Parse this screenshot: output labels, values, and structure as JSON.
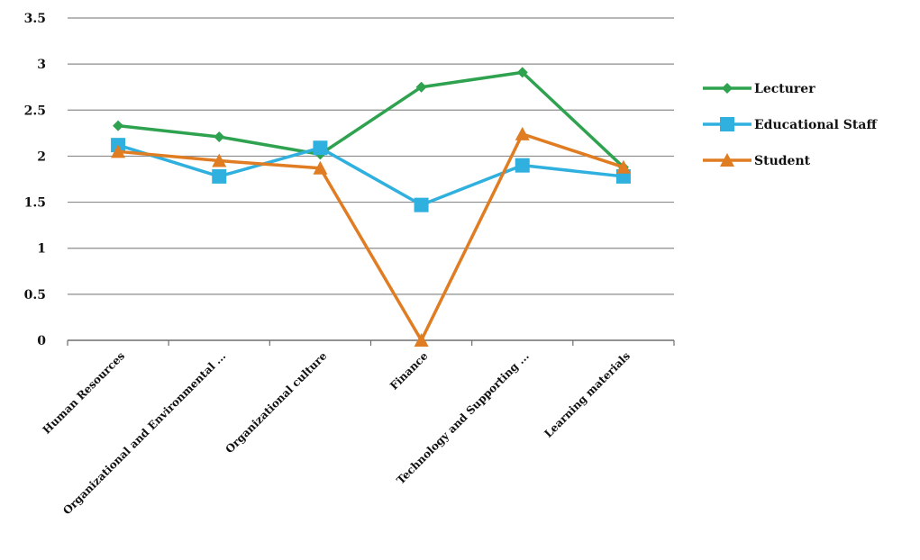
{
  "chart_data": {
    "type": "line",
    "categories": [
      "Human Resources",
      "Organizational and Environmental ...",
      "Organizational culture",
      "Finance",
      "Technology and Supporting ...",
      "Learning materials"
    ],
    "series": [
      {
        "name": "Lecturer",
        "values": [
          2.33,
          2.21,
          2.02,
          2.75,
          2.91,
          1.88
        ],
        "color": "#2ea24f",
        "marker": "diamond"
      },
      {
        "name": "Educational Staff",
        "values": [
          2.12,
          1.78,
          2.09,
          1.47,
          1.9,
          1.78
        ],
        "color": "#2fb0de",
        "marker": "square"
      },
      {
        "name": "Student",
        "values": [
          2.05,
          1.95,
          1.87,
          0,
          2.24,
          1.88
        ],
        "color": "#e07c22",
        "marker": "triangle"
      }
    ],
    "yticks": [
      "0",
      "0.5",
      "1",
      "1.5",
      "2",
      "2.5",
      "3",
      "3.5"
    ],
    "ylim": [
      0,
      3.5
    ],
    "title": "",
    "xlabel": "",
    "ylabel": "",
    "grid": true,
    "legend_position": "right"
  }
}
